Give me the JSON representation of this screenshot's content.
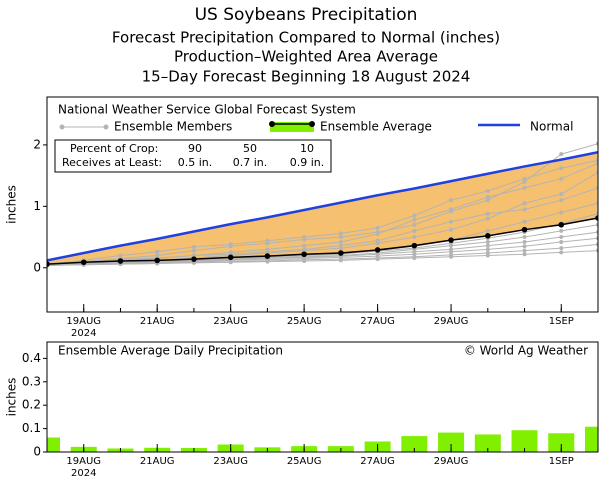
{
  "chart_data": [
    {
      "type": "line",
      "title": "US Soybeans Precipitation",
      "subtitles": [
        "Forecast Precipitation Compared to Normal (inches)",
        "Production–Weighted Area Average",
        "15–Day Forecast Beginning 18 August 2024"
      ],
      "ylabel": "inches",
      "categories": [
        null,
        "19AUG",
        null,
        "21AUG",
        null,
        "23AUG",
        null,
        "25AUG",
        null,
        "27AUG",
        null,
        "29AUG",
        null,
        null,
        "1SEP",
        null
      ],
      "year_label": "2024",
      "ylim": [
        -0.72,
        2.78
      ],
      "yticks": [
        0,
        1,
        2
      ],
      "legend_title": "National Weather Service Global Forecast System",
      "members": {
        "name": "Ensemble Members",
        "color": "#b4b4b4",
        "values": [
          [
            0.06,
            0.1,
            0.15,
            0.2,
            0.28,
            0.35,
            0.4,
            0.46,
            0.5,
            0.58,
            0.7,
            0.92,
            1.1,
            1.4,
            1.85,
            2.02
          ],
          [
            0.06,
            0.09,
            0.12,
            0.15,
            0.2,
            0.25,
            0.3,
            0.36,
            0.42,
            0.55,
            0.78,
            0.95,
            1.15,
            1.3,
            1.45,
            1.7
          ],
          [
            0.05,
            0.08,
            0.1,
            0.12,
            0.16,
            0.2,
            0.24,
            0.28,
            0.32,
            0.4,
            0.5,
            0.62,
            0.8,
            1.05,
            1.2,
            1.55
          ],
          [
            0.06,
            0.1,
            0.14,
            0.16,
            0.2,
            0.22,
            0.26,
            0.3,
            0.36,
            0.44,
            0.6,
            0.75,
            0.88,
            0.95,
            1.1,
            1.3
          ],
          [
            0.05,
            0.08,
            0.1,
            0.11,
            0.13,
            0.16,
            0.18,
            0.2,
            0.22,
            0.28,
            0.35,
            0.45,
            0.6,
            0.75,
            0.9,
            1.05
          ],
          [
            0.05,
            0.07,
            0.09,
            0.1,
            0.12,
            0.15,
            0.17,
            0.2,
            0.23,
            0.27,
            0.32,
            0.4,
            0.48,
            0.58,
            0.72,
            0.88
          ],
          [
            0.04,
            0.07,
            0.08,
            0.1,
            0.12,
            0.14,
            0.16,
            0.18,
            0.2,
            0.24,
            0.3,
            0.36,
            0.42,
            0.5,
            0.6,
            0.7
          ],
          [
            0.04,
            0.06,
            0.08,
            0.09,
            0.11,
            0.13,
            0.15,
            0.17,
            0.19,
            0.22,
            0.26,
            0.3,
            0.36,
            0.42,
            0.5,
            0.58
          ],
          [
            0.04,
            0.06,
            0.07,
            0.08,
            0.1,
            0.12,
            0.13,
            0.15,
            0.17,
            0.19,
            0.22,
            0.26,
            0.3,
            0.35,
            0.42,
            0.48
          ],
          [
            0.04,
            0.05,
            0.06,
            0.07,
            0.09,
            0.1,
            0.11,
            0.13,
            0.14,
            0.16,
            0.18,
            0.21,
            0.24,
            0.28,
            0.32,
            0.38
          ],
          [
            0.04,
            0.05,
            0.06,
            0.07,
            0.08,
            0.09,
            0.1,
            0.11,
            0.12,
            0.14,
            0.16,
            0.18,
            0.2,
            0.22,
            0.25,
            0.28
          ],
          [
            0.06,
            0.12,
            0.2,
            0.26,
            0.34,
            0.38,
            0.44,
            0.5,
            0.56,
            0.65,
            0.85,
            1.1,
            1.25,
            1.45,
            1.62,
            1.75
          ]
        ]
      },
      "series": [
        {
          "name": "Ensemble Average",
          "color": "#000000",
          "highlight": "#80f000",
          "values": [
            0.06,
            0.09,
            0.11,
            0.12,
            0.14,
            0.17,
            0.19,
            0.22,
            0.24,
            0.29,
            0.36,
            0.45,
            0.52,
            0.62,
            0.7,
            0.81
          ]
        },
        {
          "name": "Normal",
          "color": "#2040e0",
          "values": [
            0.12,
            0.24,
            0.36,
            0.47,
            0.59,
            0.71,
            0.82,
            0.94,
            1.06,
            1.18,
            1.29,
            1.41,
            1.53,
            1.65,
            1.76,
            1.88
          ]
        }
      ],
      "shade_color": "#f5c070",
      "crop_table": {
        "header": "Percent of Crop:",
        "row_label": "Receives at Least:",
        "percents": [
          90,
          50,
          10
        ],
        "amounts": [
          "0.5 in.",
          "0.7 in.",
          "0.9 in."
        ]
      }
    },
    {
      "type": "bar",
      "title": "Ensemble Average Daily Precipitation",
      "credit": "© World Ag Weather",
      "ylabel": "inches",
      "categories": [
        null,
        "19AUG",
        null,
        "21AUG",
        null,
        "23AUG",
        null,
        "25AUG",
        null,
        "27AUG",
        null,
        "29AUG",
        null,
        null,
        "1SEP",
        null
      ],
      "year_label": "2024",
      "ylim": [
        0,
        0.47
      ],
      "yticks": [
        0,
        0.1,
        0.2,
        0.3,
        0.4
      ],
      "color": "#80f000",
      "values": [
        0.062,
        0.022,
        0.015,
        0.018,
        0.017,
        0.032,
        0.02,
        0.025,
        0.025,
        0.045,
        0.068,
        0.083,
        0.075,
        0.093,
        0.08,
        0.108
      ]
    }
  ]
}
